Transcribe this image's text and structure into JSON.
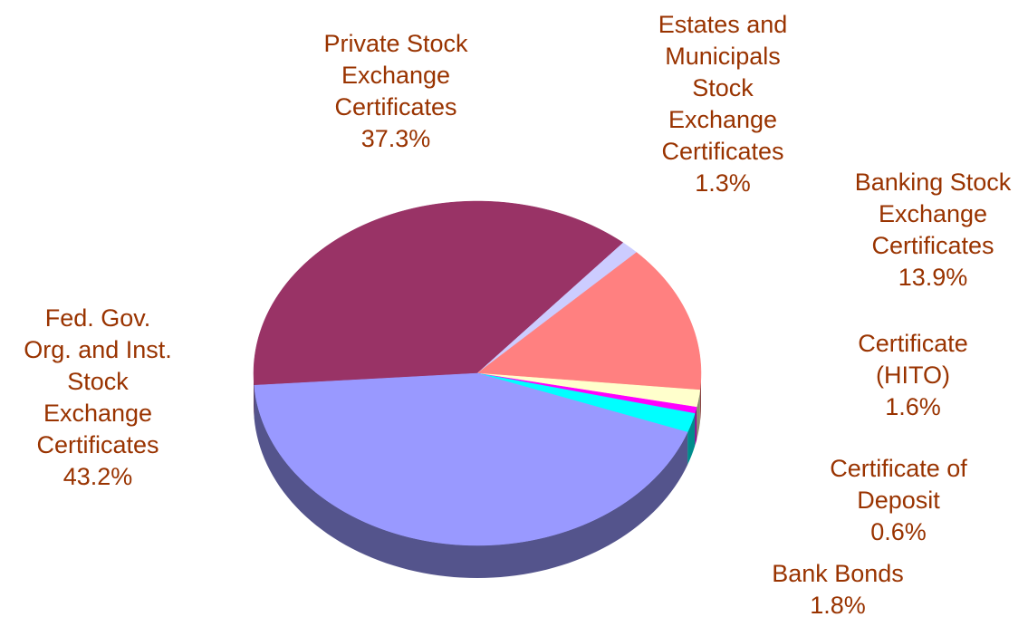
{
  "chart_data": {
    "type": "pie",
    "categories": [
      "Private Stock\nExchange\nCertificates",
      "Estates and\nMunicipals\nStock\nExchange\nCertificates",
      "Banking Stock\nExchange\nCertificates",
      "Certificate\n(HITO)",
      "Certificate of\nDeposit",
      "Bank Bonds",
      "Fed. Gov.\nOrg. and Inst.\nStock\nExchange\nCertificates"
    ],
    "values": [
      37.3,
      1.3,
      13.9,
      1.6,
      0.6,
      1.8,
      43.2
    ],
    "value_labels": [
      "37.3%",
      "1.3%",
      "13.9%",
      "1.6%",
      "0.6%",
      "1.8%",
      "43.2%"
    ],
    "colors": [
      "#993366",
      "#ccccff",
      "#ff8080",
      "#ffffcc",
      "#ff00ff",
      "#00ffff",
      "#9999ff"
    ],
    "label_color": "#993300"
  }
}
